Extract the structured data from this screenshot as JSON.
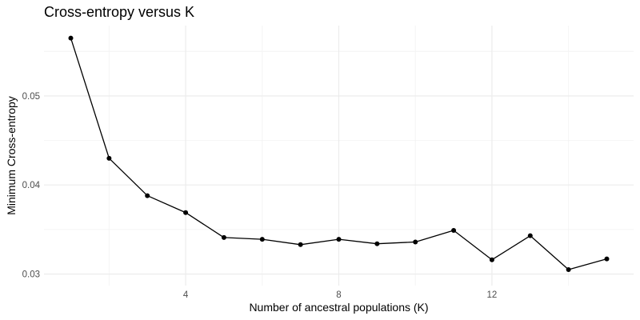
{
  "chart_data": {
    "type": "line",
    "title": "Cross-entropy versus K",
    "xlabel": "Number of ancestral populations (K)",
    "ylabel": "Minimum Cross-entropy",
    "x": [
      1,
      2,
      3,
      4,
      5,
      6,
      7,
      8,
      9,
      10,
      11,
      12,
      13,
      14,
      15
    ],
    "series": [
      {
        "values": [
          0.0565,
          0.043,
          0.0388,
          0.0369,
          0.0341,
          0.0339,
          0.0333,
          0.0339,
          0.0334,
          0.0336,
          0.0349,
          0.0316,
          0.0343,
          0.0305,
          0.0317
        ]
      }
    ],
    "xlim": [
      0.3,
      15.7
    ],
    "ylim": [
      0.0287,
      0.0579
    ],
    "x_ticks": [
      4,
      8,
      12
    ],
    "x_minor_ticks": [
      2,
      6,
      10,
      14
    ],
    "y_ticks": [
      0.03,
      0.04,
      0.05
    ],
    "y_minor_ticks": [
      0.035,
      0.045,
      0.055
    ],
    "x_tick_labels": [
      "4",
      "8",
      "12"
    ],
    "y_tick_labels": [
      "0.03",
      "0.04",
      "0.05"
    ],
    "grid": true,
    "legend": "none",
    "colors": {
      "line": "#000000",
      "point": "#000000",
      "grid_major": "#ebebeb",
      "grid_minor": "#f4f4f4"
    }
  }
}
